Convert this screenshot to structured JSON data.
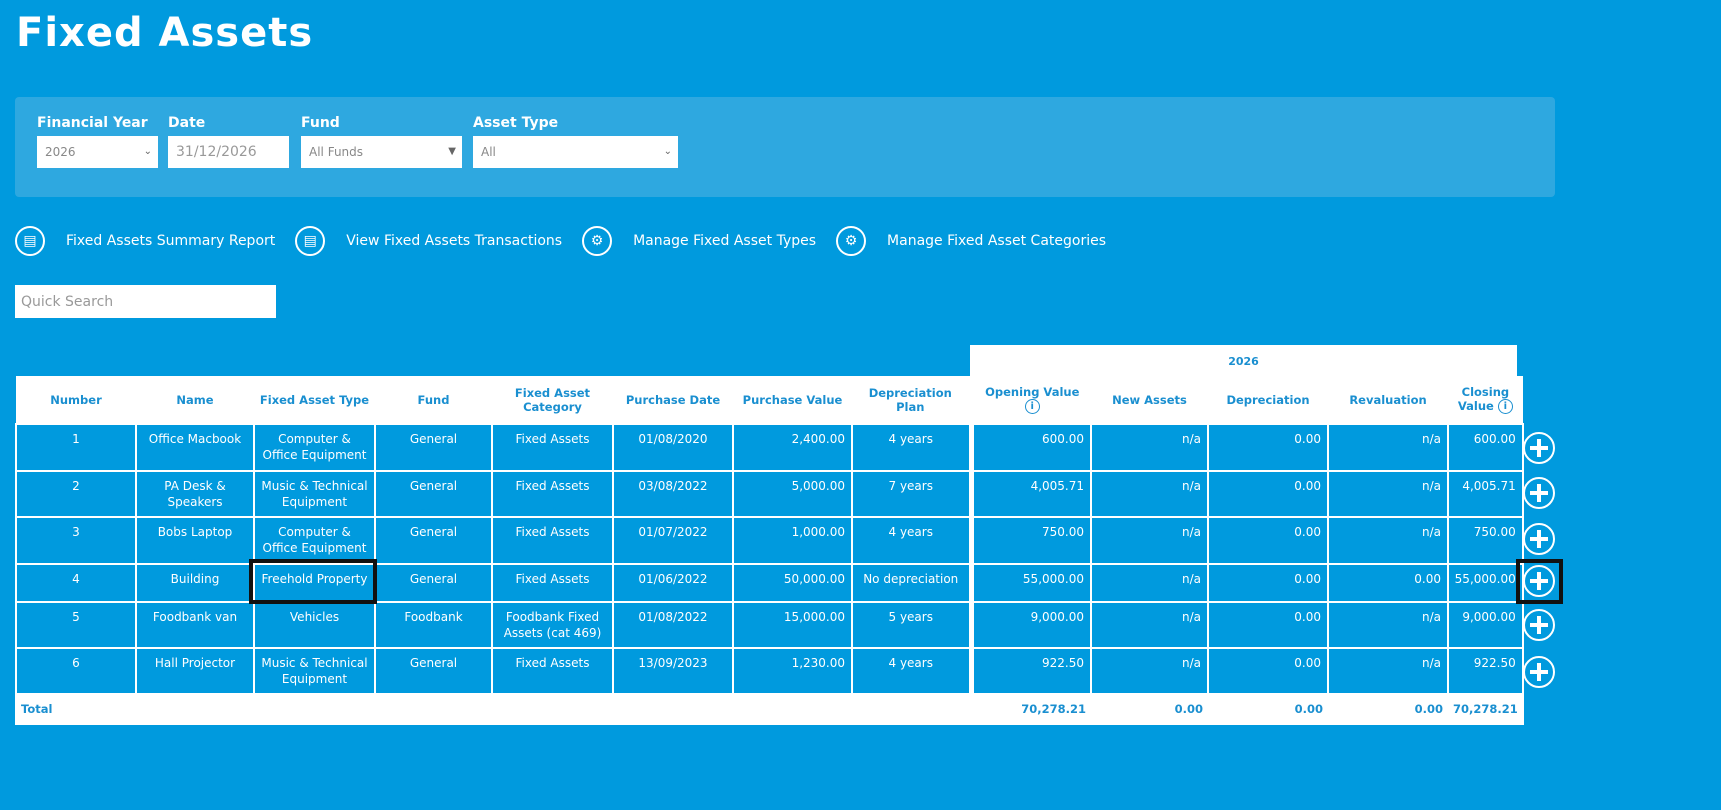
{
  "page_title": "Fixed Assets",
  "filters": {
    "financial_year": {
      "label": "Financial Year",
      "value": "2026"
    },
    "date": {
      "label": "Date",
      "value": "31/12/2026"
    },
    "fund": {
      "label": "Fund",
      "value": "All Funds"
    },
    "asset_type": {
      "label": "Asset Type",
      "value": "All"
    }
  },
  "links": [
    {
      "label": "Fixed Assets Summary Report",
      "icon": "document-icon"
    },
    {
      "label": "View Fixed Assets Transactions",
      "icon": "document-icon"
    },
    {
      "label": "Manage Fixed Asset Types",
      "icon": "gear-icon"
    },
    {
      "label": "Manage Fixed Asset Categories",
      "icon": "gear-icon"
    }
  ],
  "search": {
    "placeholder": "Quick Search",
    "value": ""
  },
  "table": {
    "year": "2026",
    "headers": [
      "Number",
      "Name",
      "Fixed Asset Type",
      "Fund",
      "Fixed Asset Category",
      "Purchase Date",
      "Purchase Value",
      "Depreciation Plan",
      "Opening Value",
      "New Assets",
      "Depreciation",
      "Revaluation",
      "Closing Value"
    ],
    "rows": [
      [
        "1",
        "Office Macbook",
        "Computer & Office Equipment",
        "General",
        "Fixed Assets",
        "01/08/2020",
        "2,400.00",
        "4 years",
        "600.00",
        "n/a",
        "0.00",
        "n/a",
        "600.00"
      ],
      [
        "2",
        "PA Desk & Speakers",
        "Music & Technical Equipment",
        "General",
        "Fixed Assets",
        "03/08/2022",
        "5,000.00",
        "7 years",
        "4,005.71",
        "n/a",
        "0.00",
        "n/a",
        "4,005.71"
      ],
      [
        "3",
        "Bobs Laptop",
        "Computer & Office Equipment",
        "General",
        "Fixed Assets",
        "01/07/2022",
        "1,000.00",
        "4 years",
        "750.00",
        "n/a",
        "0.00",
        "n/a",
        "750.00"
      ],
      [
        "4",
        "Building",
        "Freehold Property",
        "General",
        "Fixed Assets",
        "01/06/2022",
        "50,000.00",
        "No depreciation",
        "55,000.00",
        "n/a",
        "0.00",
        "0.00",
        "55,000.00"
      ],
      [
        "5",
        "Foodbank van",
        "Vehicles",
        "Foodbank",
        "Foodbank Fixed Assets (cat 469)",
        "01/08/2022",
        "15,000.00",
        "5 years",
        "9,000.00",
        "n/a",
        "0.00",
        "n/a",
        "9,000.00"
      ],
      [
        "6",
        "Hall Projector",
        "Music & Technical Equipment",
        "General",
        "Fixed Assets",
        "13/09/2023",
        "1,230.00",
        "4 years",
        "922.50",
        "n/a",
        "0.00",
        "n/a",
        "922.50"
      ]
    ],
    "total": {
      "label": "Total",
      "opening": "70,278.21",
      "new_assets": "0.00",
      "depreciation": "0.00",
      "revaluation": "0.00",
      "closing": "70,278.21"
    }
  },
  "colors": {
    "background": "#009ade",
    "panel": "#2ea8e0",
    "header_text": "#1a8fd0"
  }
}
